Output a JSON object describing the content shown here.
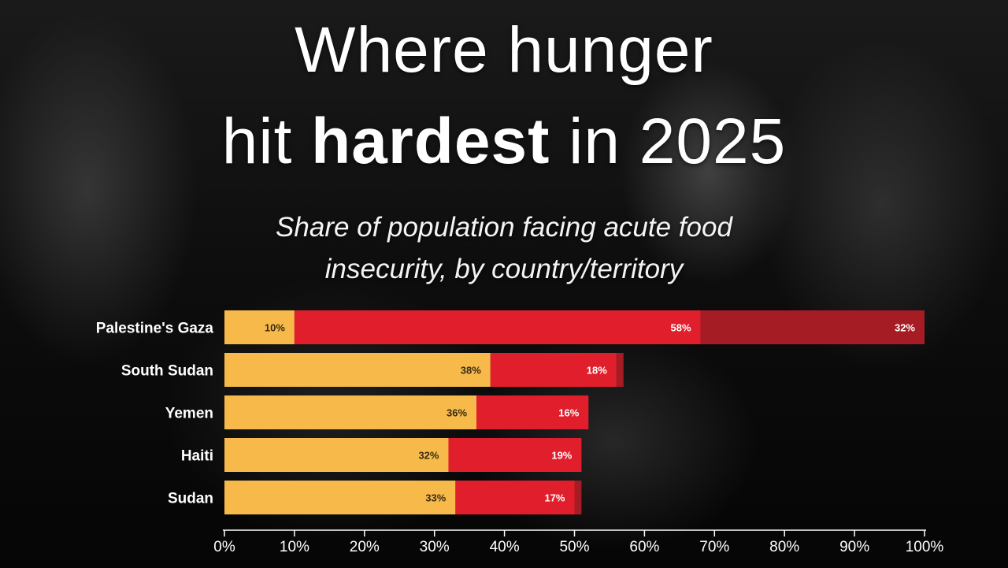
{
  "title": {
    "line1": "Where hunger",
    "line2_pre": "hit ",
    "line2_bold": "hardest",
    "line2_post": " in 2025"
  },
  "subtitle": {
    "line1": "Share of population facing acute food",
    "line2": "insecurity, by country/territory"
  },
  "chart_data": {
    "type": "bar",
    "orientation": "horizontal",
    "stacked": true,
    "categories": [
      "Palestine's Gaza",
      "South Sudan",
      "Yemen",
      "Haiti",
      "Sudan"
    ],
    "series": [
      {
        "values": [
          10,
          38,
          36,
          32,
          33
        ],
        "color": "#f6b94a",
        "label_color": "#3a2a10"
      },
      {
        "values": [
          58,
          18,
          16,
          19,
          17
        ],
        "color": "#e11f2c",
        "label_color": "#ffffff"
      },
      {
        "values": [
          32,
          1,
          0,
          0,
          1
        ],
        "color": "#a61c24",
        "label_color": "#ffffff"
      }
    ],
    "data_labels": [
      [
        "10%",
        "58%",
        "32%"
      ],
      [
        "38%",
        "18%",
        ""
      ],
      [
        "36%",
        "16%",
        ""
      ],
      [
        "32%",
        "19%",
        ""
      ],
      [
        "33%",
        "17%",
        ""
      ]
    ],
    "xlim": [
      0,
      100
    ],
    "xticks": [
      0,
      10,
      20,
      30,
      40,
      50,
      60,
      70,
      80,
      90,
      100
    ],
    "xtick_labels": [
      "0%",
      "10%",
      "20%",
      "30%",
      "40%",
      "50%",
      "60%",
      "70%",
      "80%",
      "90%",
      "100%"
    ],
    "grid": false,
    "legend": "none"
  }
}
